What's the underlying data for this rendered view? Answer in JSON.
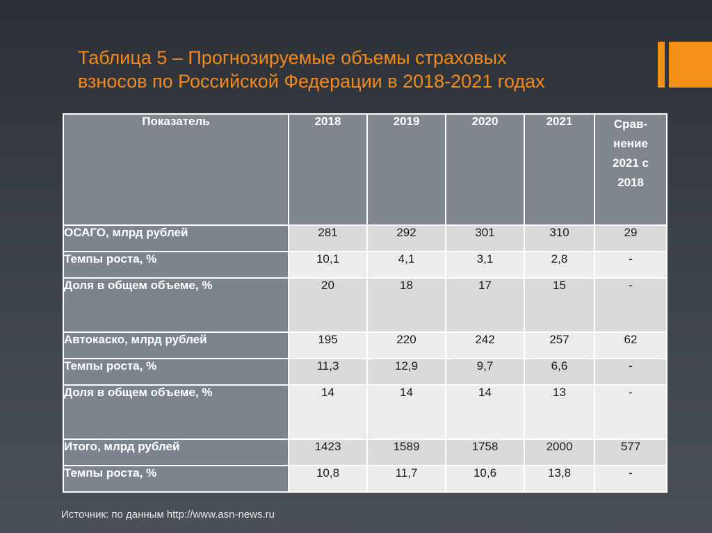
{
  "title": {
    "line1": "Таблица 5 – Прогнозируемые  объемы страховых",
    "line2": "взносов по Российской Федерации в 2018-2021 годах"
  },
  "colors": {
    "accent": "#f39017",
    "title_text": "#f2891e",
    "header_bg": "#7f868e",
    "cell_bg": "#d9d9d9"
  },
  "table": {
    "headers": [
      "Показатель",
      "2018",
      "2019",
      "2020",
      "2021",
      "Срав-нение 2021 с 2018"
    ],
    "header_compare_lines": [
      "Срав-",
      "нение",
      "2021 с",
      "2018"
    ],
    "rows": [
      {
        "label": "ОСАГО, млрд рублей",
        "values": [
          "281",
          "292",
          "301",
          "310",
          "29"
        ]
      },
      {
        "label": "Темпы роста, %",
        "values": [
          "10,1",
          "4,1",
          "3,1",
          "2,8",
          "-"
        ]
      },
      {
        "label": "Доля в общем объеме, %",
        "values": [
          "20",
          "18",
          "17",
          "15",
          "-"
        ]
      },
      {
        "label": "Автокаско, млрд рублей",
        "values": [
          "195",
          "220",
          "242",
          "257",
          "62"
        ]
      },
      {
        "label": "Темпы роста, %",
        "values": [
          "11,3",
          "12,9",
          "9,7",
          "6,6",
          "-"
        ]
      },
      {
        "label": "Доля в общем объеме, %",
        "values": [
          "14",
          "14",
          "14",
          "13",
          "-"
        ]
      },
      {
        "label": "Итого, млрд рублей",
        "values": [
          "1423",
          "1589",
          "1758",
          "2000",
          "577"
        ]
      },
      {
        "label": "Темпы роста, %",
        "values": [
          "10,8",
          "11,7",
          "10,6",
          "13,8",
          "-"
        ]
      }
    ]
  },
  "source": "Источник: по данным http://www.asn-news.ru"
}
